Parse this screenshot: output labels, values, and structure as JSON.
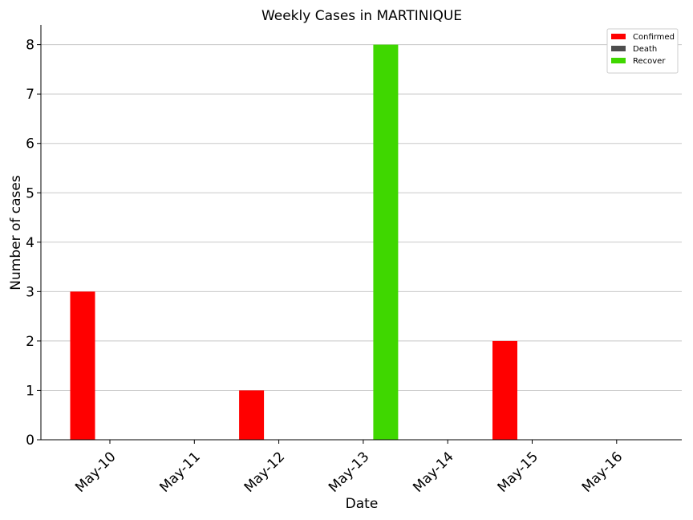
{
  "chart_data": {
    "type": "bar",
    "title": "Weekly Cases in MARTINIQUE",
    "xlabel": "Date",
    "ylabel": "Number of cases",
    "categories": [
      "May-10",
      "May-11",
      "May-12",
      "May-13",
      "May-14",
      "May-15",
      "May-16"
    ],
    "series": [
      {
        "name": "Confirmed",
        "color": "#ff0000",
        "values": [
          3,
          0,
          1,
          0,
          0,
          2,
          0
        ]
      },
      {
        "name": "Death",
        "color": "#4d4d4d",
        "values": [
          0,
          0,
          0,
          0,
          0,
          0,
          0
        ]
      },
      {
        "name": "Recover",
        "color": "#3fd700",
        "values": [
          0,
          0,
          0,
          8,
          0,
          0,
          0
        ]
      }
    ],
    "ylim": [
      0,
      8.4
    ],
    "yticks": [
      0,
      1,
      2,
      3,
      4,
      5,
      6,
      7,
      8
    ],
    "grid": "horizontal",
    "legend_position": "top-right"
  }
}
